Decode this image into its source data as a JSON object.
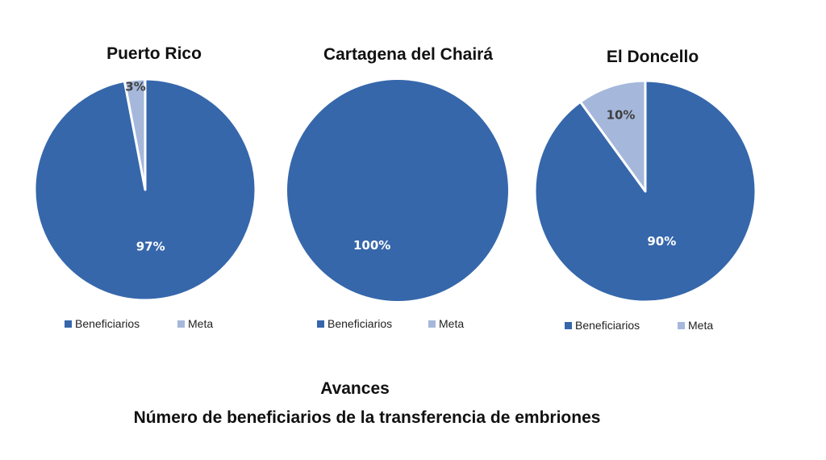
{
  "colors": {
    "beneficiarios": "#3667ab",
    "meta": "#a5b8db",
    "slice_stroke": "#ffffff",
    "label_on_dark": "#ffffff",
    "label_on_light": "#404040"
  },
  "chart_data": [
    {
      "type": "pie",
      "title": "Puerto Rico",
      "slices": [
        {
          "label": "Beneficiarios",
          "value": 97,
          "display": "97%"
        },
        {
          "label": "Meta",
          "value": 3,
          "display": "3%"
        }
      ],
      "legend": [
        "Beneficiarios",
        "Meta"
      ],
      "legend_position": "bottom"
    },
    {
      "type": "pie",
      "title": "Cartagena del Chairá",
      "slices": [
        {
          "label": "Beneficiarios",
          "value": 100,
          "display": "100%"
        },
        {
          "label": "Meta",
          "value": 0,
          "display": ""
        }
      ],
      "legend": [
        "Beneficiarios",
        "Meta"
      ],
      "legend_position": "bottom"
    },
    {
      "type": "pie",
      "title": "El Doncello",
      "slices": [
        {
          "label": "Beneficiarios",
          "value": 90,
          "display": "90%"
        },
        {
          "label": "Meta",
          "value": 10,
          "display": "10%"
        }
      ],
      "legend": [
        "Beneficiarios",
        "Meta"
      ],
      "legend_position": "bottom"
    }
  ],
  "footer": {
    "line1": "Avances",
    "line2": "Número de beneficiarios de la transferencia de embriones"
  }
}
